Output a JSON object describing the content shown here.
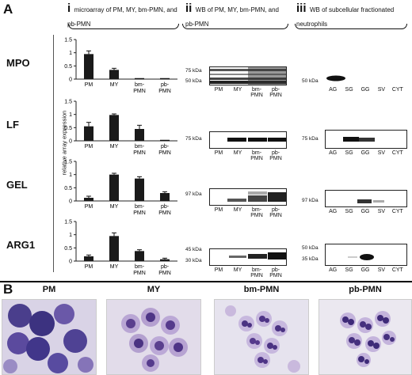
{
  "panel_A": "A",
  "panel_B": "B",
  "sections": [
    {
      "roman": "i",
      "title": "microarray of PM, MY, bm-PMN, and pb-PMN"
    },
    {
      "roman": "ii",
      "title": "WB of PM, MY, bm-PMN, and pb-PMN"
    },
    {
      "roman": "iii",
      "title": "WB of subcellular fractionated neutrophils"
    }
  ],
  "y_axis_label": "relative array expression",
  "rows": [
    "MPO",
    "LF",
    "GEL",
    "ARG1"
  ],
  "bar_categories": [
    "PM",
    "MY",
    "bm-PMN",
    "pb-PMN"
  ],
  "wb_lanes_ii": [
    "PM",
    "MY",
    "bm-PMN",
    "pb-PMN"
  ],
  "wb_lanes_iii": [
    "AG",
    "SG",
    "GG",
    "SV",
    "CYT"
  ],
  "blot_markers": {
    "mpo_ii": [
      "75 kDa",
      "50 kDa"
    ],
    "mpo_iii": [
      "50 kDa"
    ],
    "lf_ii": [
      "75 kDa"
    ],
    "lf_iii": [
      "75 kDa"
    ],
    "gel_ii": [
      "97 kDa"
    ],
    "gel_iii": [
      "97 kDa"
    ],
    "arg1_ii": [
      "45 kDa",
      "30 kDa"
    ],
    "arg1_iii": [
      "50 kDa",
      "35 kDa"
    ]
  },
  "chart_data": [
    {
      "type": "bar",
      "title": "MPO",
      "categories": [
        "PM",
        "MY",
        "bm-PMN",
        "pb-PMN"
      ],
      "values": [
        0.95,
        0.35,
        0.0,
        0.0
      ],
      "errors": [
        0.12,
        0.06,
        0.0,
        0.0
      ],
      "ylim": [
        0,
        1.5
      ],
      "yticks": [
        "0",
        "0.5",
        "1",
        "1.5"
      ]
    },
    {
      "type": "bar",
      "title": "LF",
      "categories": [
        "PM",
        "MY",
        "bm-PMN",
        "pb-PMN"
      ],
      "values": [
        0.55,
        0.98,
        0.45,
        0.0
      ],
      "errors": [
        0.15,
        0.04,
        0.14,
        0.0
      ],
      "ylim": [
        0,
        1.5
      ],
      "yticks": [
        "0",
        "0.5",
        "1",
        "1.5"
      ]
    },
    {
      "type": "bar",
      "title": "GEL",
      "categories": [
        "PM",
        "MY",
        "bm-PMN",
        "pb-PMN"
      ],
      "values": [
        0.12,
        1.0,
        0.85,
        0.3
      ],
      "errors": [
        0.06,
        0.05,
        0.07,
        0.05
      ],
      "ylim": [
        0,
        1.5
      ],
      "yticks": [
        "0",
        "0.5",
        "1",
        "1.5"
      ]
    },
    {
      "type": "bar",
      "title": "ARG1",
      "categories": [
        "PM",
        "MY",
        "bm-PMN",
        "pb-PMN"
      ],
      "values": [
        0.18,
        0.95,
        0.38,
        0.07
      ],
      "errors": [
        0.05,
        0.12,
        0.05,
        0.04
      ],
      "ylim": [
        0,
        1.5
      ],
      "yticks": [
        "0",
        "0.5",
        "1",
        "1.5"
      ]
    }
  ],
  "photos": [
    "PM",
    "MY",
    "bm-PMN",
    "pb-PMN"
  ]
}
